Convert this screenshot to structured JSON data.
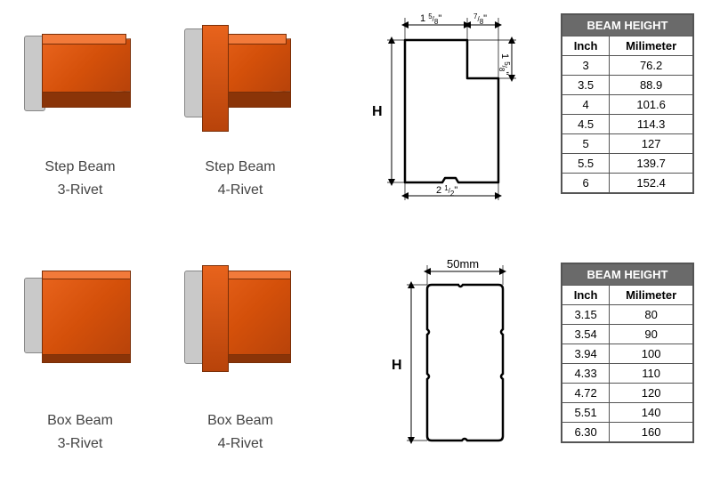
{
  "beams": [
    {
      "name": "Step Beam",
      "rivet": "3-Rivet"
    },
    {
      "name": "Step Beam",
      "rivet": "4-Rivet"
    },
    {
      "name": "Box Beam",
      "rivet": "3-Rivet"
    },
    {
      "name": "Box Beam",
      "rivet": "4-Rivet"
    }
  ],
  "beam_colors": {
    "body_grad_start": "#e8631c",
    "body_grad_mid": "#d4500a",
    "body_grad_end": "#b8430a",
    "outline": "#7a2f08",
    "plate": "#c9c9c9",
    "plate_border": "#888888"
  },
  "step_profile": {
    "dims": {
      "top_left": "1 5/8\"",
      "top_right": "7/8\"",
      "step_height": "1 5/8\"",
      "bottom_width": "2 1/2\"",
      "height_label": "H"
    },
    "stroke": "#000000",
    "stroke_width": 2,
    "fill": "none"
  },
  "box_profile": {
    "dims": {
      "top_width": "50mm",
      "height_label": "H"
    },
    "stroke": "#000000",
    "stroke_width": 2,
    "fill": "none"
  },
  "table1": {
    "title": "BEAM HEIGHT",
    "header_bg": "#6a6a6a",
    "header_color": "#ffffff",
    "border_color": "#555555",
    "columns": [
      "Inch",
      "Milimeter"
    ],
    "rows": [
      [
        "3",
        "76.2"
      ],
      [
        "3.5",
        "88.9"
      ],
      [
        "4",
        "101.6"
      ],
      [
        "4.5",
        "114.3"
      ],
      [
        "5",
        "127"
      ],
      [
        "5.5",
        "139.7"
      ],
      [
        "6",
        "152.4"
      ]
    ]
  },
  "table2": {
    "title": "BEAM HEIGHT",
    "header_bg": "#6a6a6a",
    "header_color": "#ffffff",
    "border_color": "#555555",
    "columns": [
      "Inch",
      "Milimeter"
    ],
    "rows": [
      [
        "3.15",
        "80"
      ],
      [
        "3.54",
        "90"
      ],
      [
        "3.94",
        "100"
      ],
      [
        "4.33",
        "110"
      ],
      [
        "4.72",
        "120"
      ],
      [
        "5.51",
        "140"
      ],
      [
        "6.30",
        "160"
      ]
    ]
  }
}
